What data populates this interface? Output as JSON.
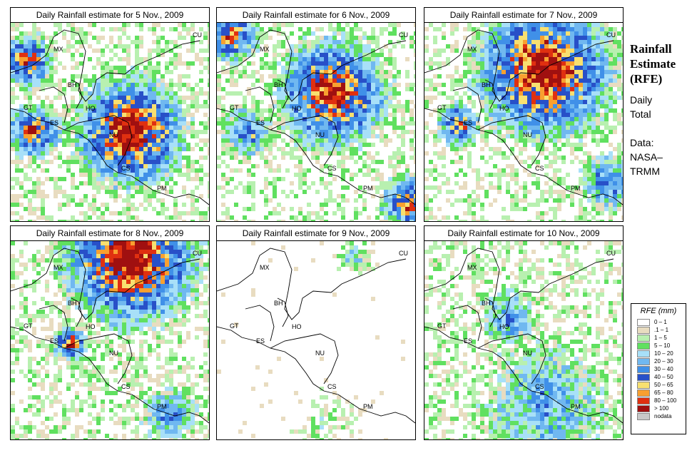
{
  "panels": [
    {
      "title": "Daily Rainfall estimate for  5 Nov., 2009",
      "date": "5 Nov., 2009"
    },
    {
      "title": "Daily Rainfall estimate for  6 Nov., 2009",
      "date": "6 Nov., 2009"
    },
    {
      "title": "Daily Rainfall estimate for  7 Nov., 2009",
      "date": "7 Nov., 2009"
    },
    {
      "title": "Daily Rainfall estimate for  8 Nov., 2009",
      "date": "8 Nov., 2009"
    },
    {
      "title": "Daily Rainfall estimate for  9 Nov., 2009",
      "date": "9 Nov., 2009"
    },
    {
      "title": "Daily Rainfall estimate for  10 Nov., 2009",
      "date": "10 Nov., 2009"
    }
  ],
  "country_labels": [
    "MX",
    "BH",
    "GT",
    "HO",
    "ES",
    "NU",
    "CS",
    "PM",
    "CU"
  ],
  "side": {
    "title_line1": "Rainfall",
    "title_line2": "Estimate",
    "title_line3": "(RFE)",
    "daily_line1": "Daily",
    "daily_line2": "Total",
    "data_line1": "Data:",
    "data_line2": "NASA–",
    "data_line3": "TRMM"
  },
  "legend": {
    "title": "RFE (mm)",
    "items": [
      {
        "label": "0 – 1",
        "color": "#ffffff"
      },
      {
        "label": ".1 – 1",
        "color": "#e8dcc0"
      },
      {
        "label": "1 – 5",
        "color": "#b8f0b0"
      },
      {
        "label": "5 – 10",
        "color": "#60e060"
      },
      {
        "label": "10 – 20",
        "color": "#a8e0f8"
      },
      {
        "label": "20 – 30",
        "color": "#70b8f0"
      },
      {
        "label": "30 – 40",
        "color": "#4090e8"
      },
      {
        "label": "40 – 50",
        "color": "#2850c8"
      },
      {
        "label": "50 – 65",
        "color": "#f8e070"
      },
      {
        "label": "65 – 80",
        "color": "#f8a030"
      },
      {
        "label": "80 – 100",
        "color": "#e03010"
      },
      {
        "label": "> 100",
        "color": "#a01010"
      },
      {
        "label": "nodata",
        "color": "#c8c8c8"
      }
    ]
  }
}
